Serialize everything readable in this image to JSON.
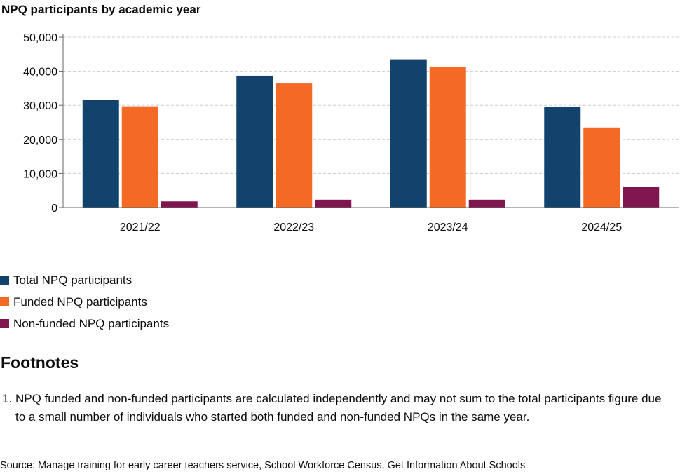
{
  "chart_data": {
    "type": "bar",
    "title": "NPQ participants by academic year",
    "categories": [
      "2021/22",
      "2022/23",
      "2023/24",
      "2024/25"
    ],
    "series": [
      {
        "name": "Total NPQ participants",
        "color": "#12436d",
        "values": [
          31500,
          38700,
          43500,
          29500
        ]
      },
      {
        "name": "Funded NPQ participants",
        "color": "#f46a25",
        "values": [
          29700,
          36400,
          41200,
          23500
        ]
      },
      {
        "name": "Non-funded NPQ participants",
        "color": "#801650",
        "values": [
          1800,
          2300,
          2300,
          6000
        ]
      }
    ],
    "ylim": [
      0,
      50000
    ],
    "yticks": [
      0,
      10000,
      20000,
      30000,
      40000,
      50000
    ],
    "ytick_labels": [
      "0",
      "10,000",
      "20,000",
      "30,000",
      "40,000",
      "50,000"
    ],
    "xlabel": "",
    "ylabel": "",
    "grid": true,
    "legend_position": "bottom-left"
  },
  "footnotes": {
    "heading": "Footnotes",
    "items": [
      "NPQ funded and non-funded participants are calculated independently and may not sum to the total participants figure due to a small number of individuals who started both funded and non-funded NPQs in the same year."
    ]
  },
  "source": "Source: Manage training for early career teachers service, School Workforce Census, Get Information About Schools"
}
